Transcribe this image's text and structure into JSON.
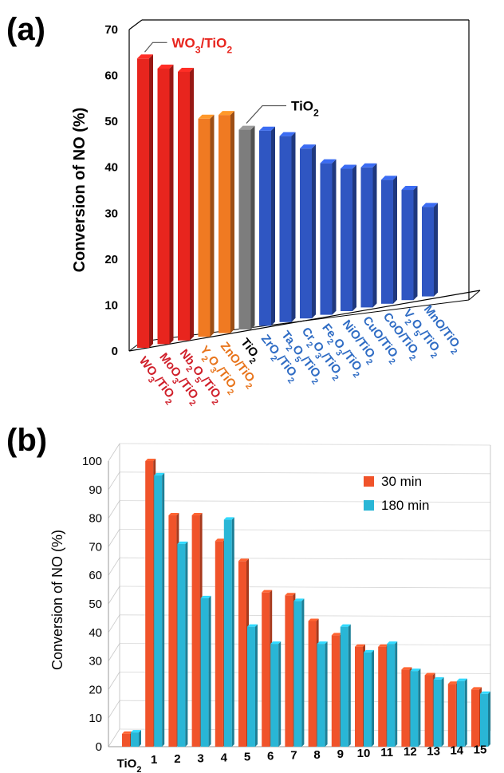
{
  "chart_data": [
    {
      "panel": "(a)",
      "type": "bar",
      "ylabel": "Conversion of NO (%)",
      "ylim": [
        0,
        70
      ],
      "yticks": [
        "0",
        "10",
        "20",
        "30",
        "40",
        "50",
        "60",
        "70"
      ],
      "categories": [
        {
          "label": "WO3/TiO2",
          "value": 63,
          "color": "#e8251e"
        },
        {
          "label": "MoO3/TiO2",
          "value": 60,
          "color": "#e8251e"
        },
        {
          "label": "Nb2O5/TiO2",
          "value": 58.5,
          "color": "#e8251e"
        },
        {
          "label": "Y2O3/TiO2",
          "value": 47.5,
          "color": "#f07a22"
        },
        {
          "label": "ZnO/TiO2",
          "value": 47.5,
          "color": "#f07a22"
        },
        {
          "label": "TiO2",
          "value": 43.5,
          "color": "#7d7d7d"
        },
        {
          "label": "ZrO2/TiO2",
          "value": 42.5,
          "color": "#2f56c2"
        },
        {
          "label": "Ta2O5/TiO2",
          "value": 40.5,
          "color": "#2f56c2"
        },
        {
          "label": "Cr2O3/TiO2",
          "value": 37,
          "color": "#2f56c2"
        },
        {
          "label": "Fe2O3/TiO2",
          "value": 33,
          "color": "#2f56c2"
        },
        {
          "label": "NiO/TiO2",
          "value": 31,
          "color": "#2f56c2"
        },
        {
          "label": "CuO/TiO2",
          "value": 30.5,
          "color": "#2f56c2"
        },
        {
          "label": "CoO/TiO2",
          "value": 27,
          "color": "#2f56c2"
        },
        {
          "label": "V2O5/TiO2",
          "value": 24,
          "color": "#2f56c2"
        },
        {
          "label": "MnO/TiO2",
          "value": 19.5,
          "color": "#2f56c2"
        }
      ],
      "label_colors": {
        "red": "#d01f2a",
        "orange": "#e8741b",
        "black": "#000000",
        "blue": "#2f6cc4"
      },
      "annotations": [
        {
          "text": "WO3/TiO2",
          "target": "WO3/TiO2",
          "color": "#e8251e"
        },
        {
          "text": "TiO2",
          "target": "TiO2",
          "color": "#000000"
        }
      ]
    },
    {
      "panel": "(b)",
      "type": "bar",
      "ylabel": "Conversion of NO (%)",
      "ylim": [
        0,
        100
      ],
      "yticks": [
        "0",
        "10",
        "20",
        "30",
        "40",
        "50",
        "60",
        "70",
        "80",
        "90",
        "100"
      ],
      "categories": [
        "TiO2",
        "1",
        "2",
        "3",
        "4",
        "5",
        "6",
        "7",
        "8",
        "9",
        "10",
        "11",
        "12",
        "13",
        "14",
        "15"
      ],
      "series": [
        {
          "name": "30 min",
          "color": "#f0532a",
          "values": [
            4.5,
            100,
            81,
            81,
            72,
            65,
            54,
            53,
            44,
            39,
            35,
            35,
            27,
            25,
            22,
            20
          ]
        },
        {
          "name": "180 min",
          "color": "#29b6d6",
          "values": [
            5,
            95,
            71,
            52,
            79.5,
            42,
            36,
            51,
            36,
            42,
            33,
            36,
            26.5,
            23.5,
            23,
            18.5
          ]
        }
      ],
      "legend": "top-right"
    }
  ]
}
